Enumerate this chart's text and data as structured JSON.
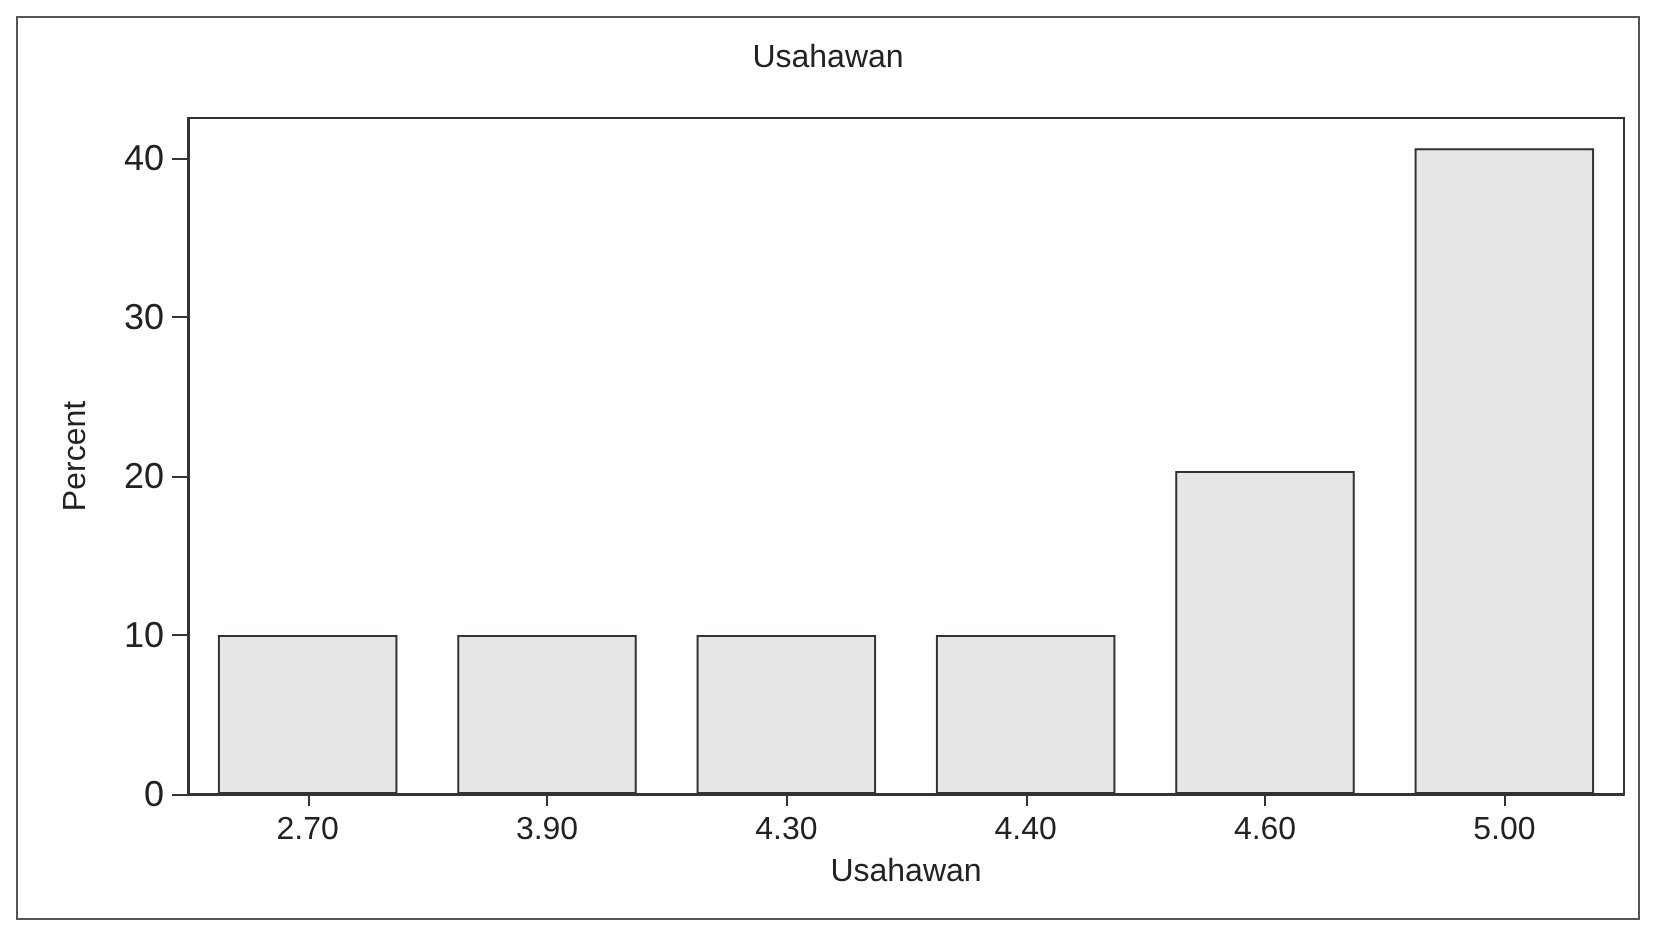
{
  "chart_data": {
    "type": "bar",
    "title": "Usahawan",
    "xlabel": "Usahawan",
    "ylabel": "Percent",
    "categories": [
      "2.70",
      "3.90",
      "4.30",
      "4.40",
      "4.60",
      "5.00"
    ],
    "values": [
      10,
      10,
      10,
      10,
      20.3,
      40.6
    ],
    "color": "#e5e6e8",
    "ylim": [
      0,
      42.5
    ],
    "yticks": [
      0,
      10,
      20,
      30,
      40
    ],
    "grid": false
  }
}
